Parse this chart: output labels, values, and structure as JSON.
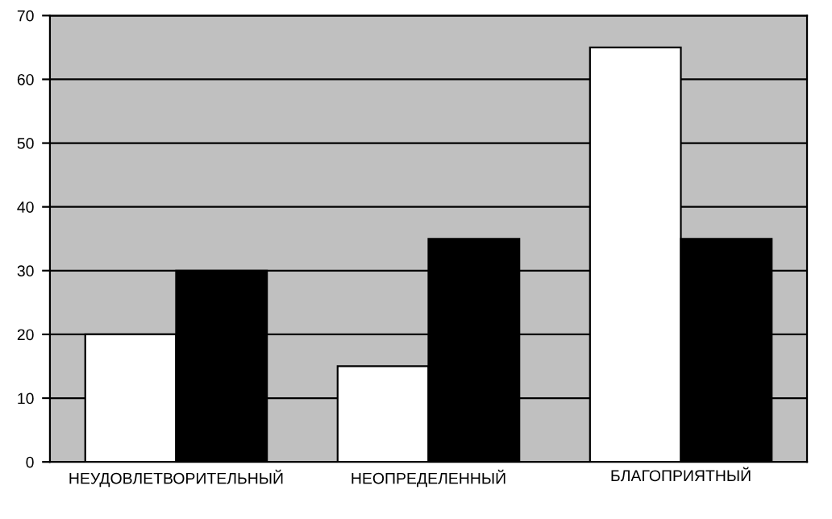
{
  "chart_data": {
    "type": "bar",
    "categories": [
      "НЕУДОВЛЕТВОРИТЕЛЬНЫЙ",
      "НЕОПРЕДЕЛЕННЫЙ",
      "БЛАГОПРИЯТНЫЙ"
    ],
    "series": [
      {
        "color": "#ffffff",
        "values": [
          20,
          15,
          65
        ]
      },
      {
        "color": "#000000",
        "values": [
          30,
          35,
          35
        ]
      }
    ],
    "ylim": [
      0,
      70
    ],
    "yticks": [
      0,
      10,
      20,
      30,
      40,
      50,
      60,
      70
    ],
    "grid": "y",
    "legend": false
  }
}
